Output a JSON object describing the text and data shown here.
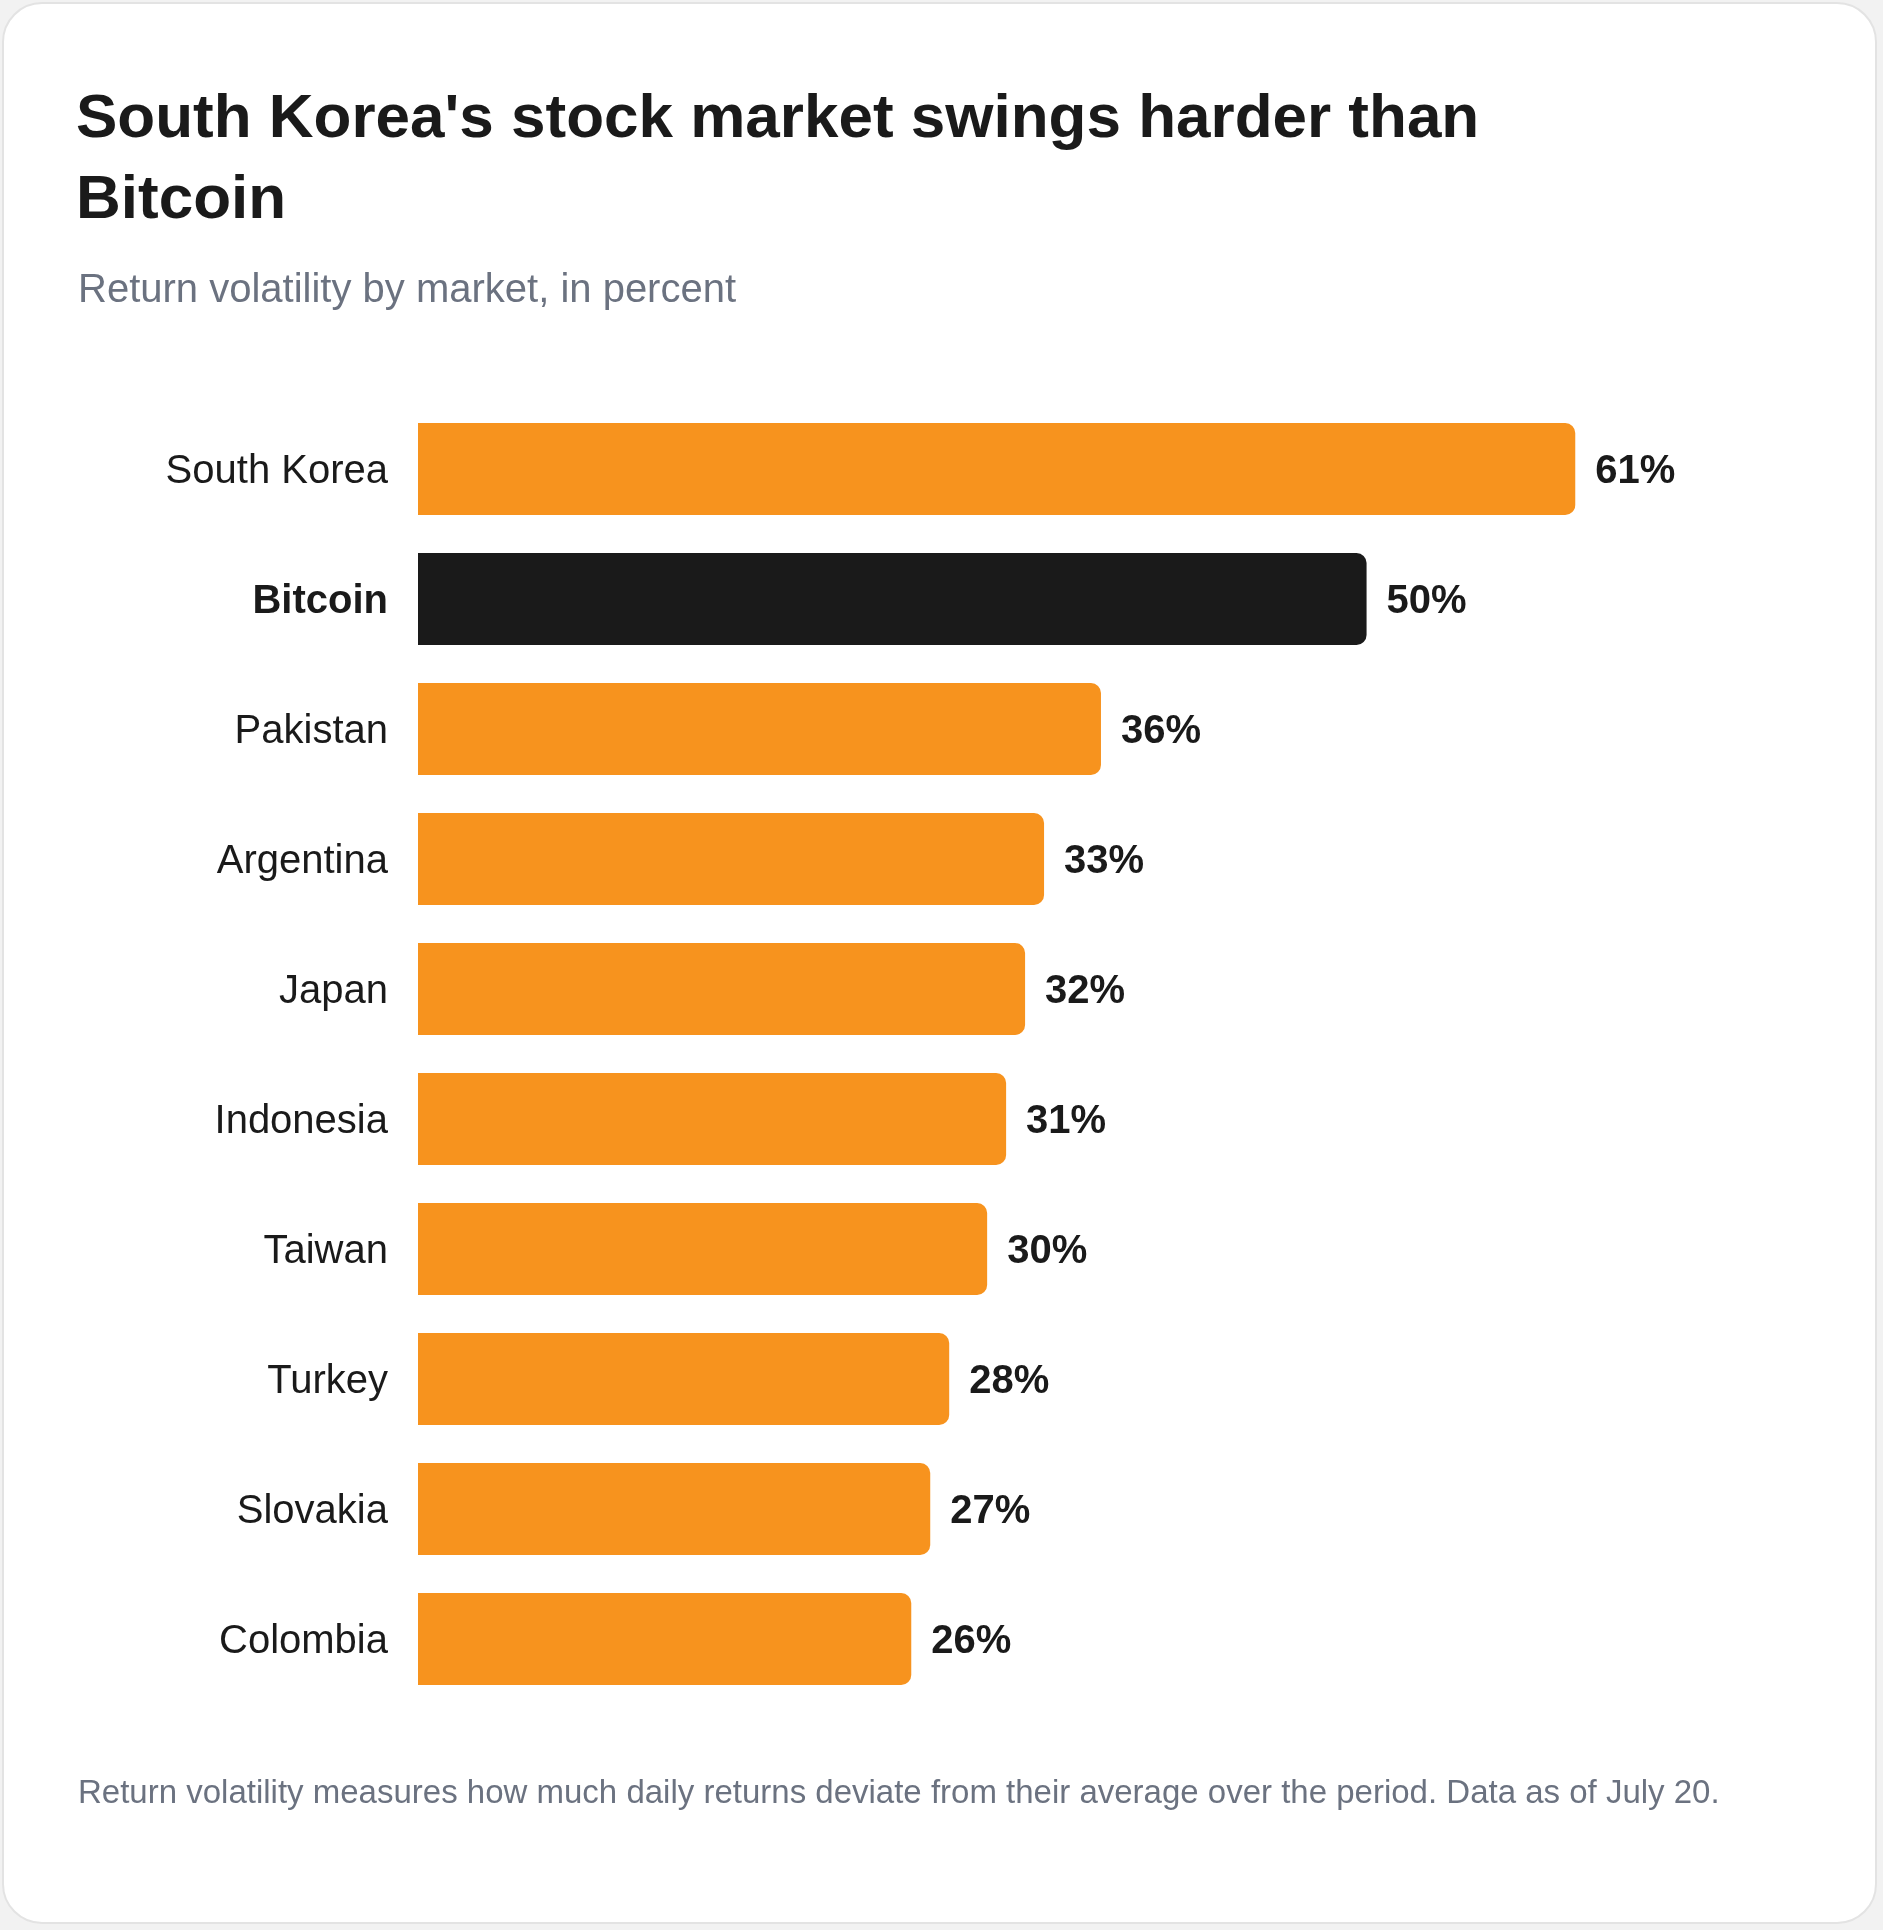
{
  "chart_data": {
    "type": "bar",
    "orientation": "horizontal",
    "title": "South Korea's stock market swings harder than Bitcoin",
    "subtitle": "Return volatility by market, in percent",
    "categories": [
      "South Korea",
      "Bitcoin",
      "Pakistan",
      "Argentina",
      "Japan",
      "Indonesia",
      "Taiwan",
      "Turkey",
      "Slovakia",
      "Colombia"
    ],
    "values": [
      61,
      50,
      36,
      33,
      32,
      31,
      30,
      28,
      27,
      26
    ],
    "value_labels": [
      "61%",
      "50%",
      "36%",
      "33%",
      "32%",
      "31%",
      "30%",
      "28%",
      "27%",
      "26%"
    ],
    "colors": [
      "#f7931e",
      "#1a1a1a",
      "#f7931e",
      "#f7931e",
      "#f7931e",
      "#f7931e",
      "#f7931e",
      "#f7931e",
      "#f7931e",
      "#f7931e"
    ],
    "annotations": [
      "Return volatility measures how much daily returns deviate from their average over the period. Data as of July 20."
    ]
  }
}
